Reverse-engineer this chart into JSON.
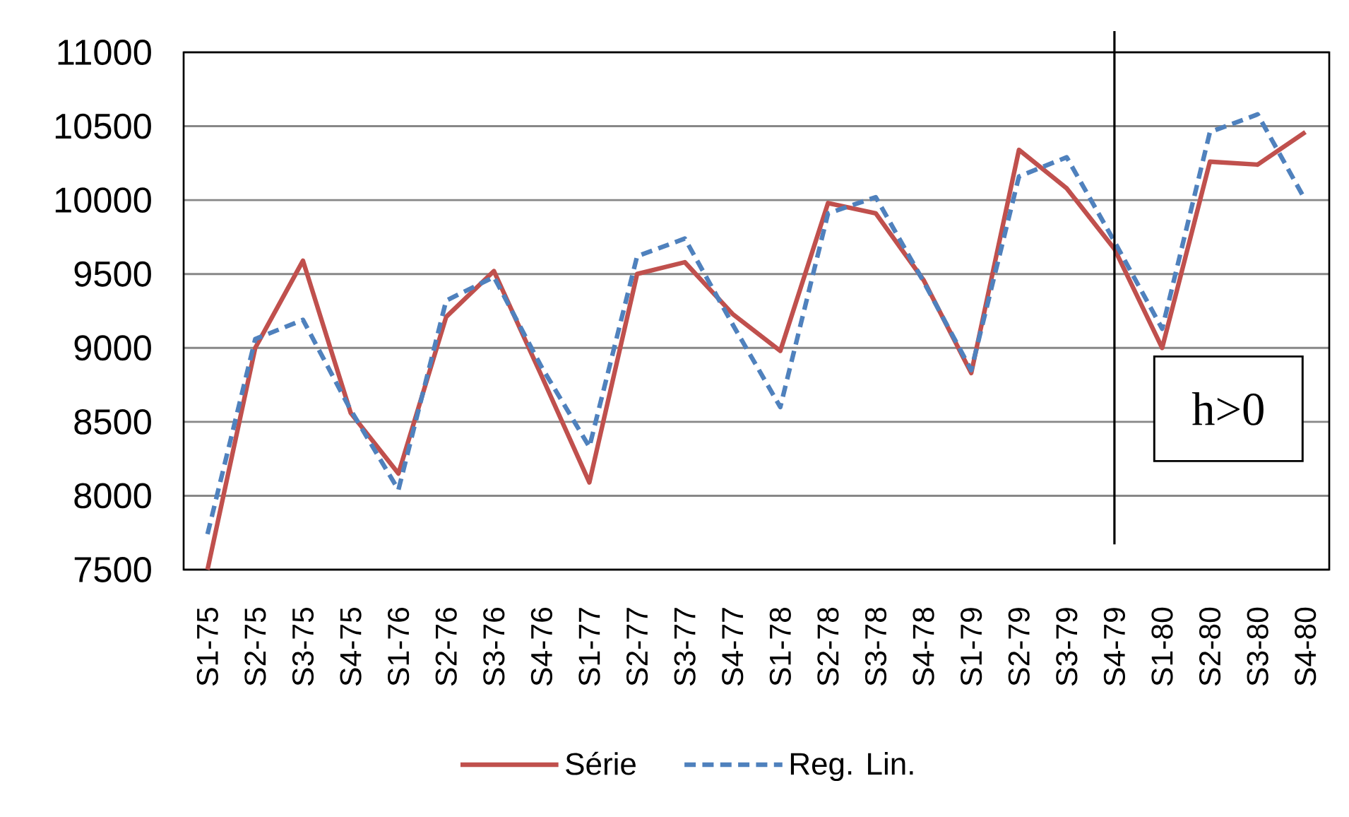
{
  "chart_data": {
    "type": "line",
    "categories": [
      "S1-75",
      "S2-75",
      "S3-75",
      "S4-75",
      "S1-76",
      "S2-76",
      "S3-76",
      "S4-76",
      "S1-77",
      "S2-77",
      "S3-77",
      "S4-77",
      "S1-78",
      "S2-78",
      "S3-78",
      "S4-78",
      "S1-79",
      "S2-79",
      "S3-79",
      "S4-79",
      "S1-80",
      "S2-80",
      "S3-80",
      "S4-80"
    ],
    "series": [
      {
        "name": "Série",
        "color": "#c0504d",
        "line_style": "solid",
        "values": [
          7500,
          9000,
          9590,
          8560,
          8150,
          9210,
          9520,
          8810,
          8090,
          9500,
          9580,
          9230,
          8980,
          9980,
          9910,
          9460,
          8830,
          10340,
          10080,
          9670,
          9000,
          10260,
          10240,
          10460
        ]
      },
      {
        "name": "Reg. Lin.",
        "color": "#4f81bd",
        "line_style": "dashed",
        "values": [
          7740,
          9060,
          9190,
          8580,
          8040,
          9320,
          9480,
          8870,
          8330,
          9620,
          9740,
          9160,
          8600,
          9910,
          10020,
          9450,
          8850,
          10160,
          10290,
          9720,
          9130,
          10460,
          10580,
          10000
        ]
      }
    ],
    "ylim": [
      7500,
      11000
    ],
    "yticks": [
      7500,
      8000,
      8500,
      9000,
      9500,
      10000,
      10500,
      11000
    ],
    "grid": "y",
    "legend": "bottom",
    "ref_lines": [
      {
        "axis": "x",
        "value": "S4-79",
        "color": "#000000"
      }
    ],
    "annotations": [
      "h>0"
    ]
  }
}
